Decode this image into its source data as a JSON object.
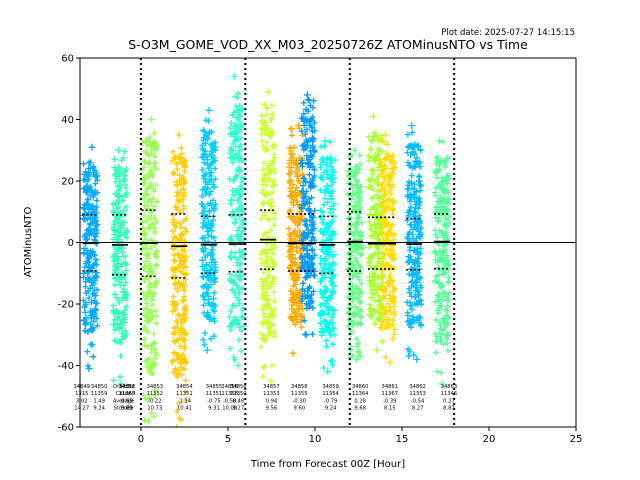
{
  "plot_date": "Plot date: 2025-07-27 14:15:15",
  "chart_data": {
    "type": "scatter",
    "title": "S-O3M_GOME_VOD_XX_M03_20250726Z ATOMinusNTO vs Time",
    "xlabel": "Time from Forecast 00Z [Hour]",
    "ylabel": "ATOMinusNTO",
    "xlim": [
      -3.5,
      25
    ],
    "ylim": [
      -60,
      60
    ],
    "xticks": [
      0,
      5,
      10,
      15,
      20,
      25
    ],
    "yticks": [
      -60,
      -40,
      -20,
      0,
      20,
      40,
      60
    ],
    "grid": false,
    "legend": "none",
    "marker": "+",
    "zero_line": 0,
    "vertical_dotted_lines": [
      0,
      6,
      12,
      18
    ],
    "orbits": [
      {
        "x": -2.9,
        "color": "#00aaff",
        "top": 31,
        "bottom": -41,
        "mean": -0.2,
        "std_hi": 9,
        "std_lo": -9.2
      },
      {
        "x": -1.2,
        "color": "#33ffbb",
        "top": 30,
        "bottom": -46,
        "mean": -0.8,
        "std_hi": 9,
        "std_lo": -10.5
      },
      {
        "x": 0.5,
        "color": "#99ff55",
        "top": 40,
        "bottom": -58,
        "mean": -0.2,
        "std_hi": 10.5,
        "std_lo": -11
      },
      {
        "x": 2.2,
        "color": "#ffcc00",
        "top": 35,
        "bottom": -60,
        "mean": -1.2,
        "std_hi": 9.3,
        "std_lo": -11.5
      },
      {
        "x": 3.9,
        "color": "#00ccff",
        "top": 43,
        "bottom": -35,
        "mean": -0.7,
        "std_hi": 8.5,
        "std_lo": -10
      },
      {
        "x": 5.5,
        "color": "#33ffcc",
        "top": 54,
        "bottom": -40,
        "mean": -0.5,
        "std_hi": 9,
        "std_lo": -9.5
      },
      {
        "x": 7.3,
        "color": "#ccff33",
        "top": 49,
        "bottom": -45,
        "mean": 0.9,
        "std_hi": 10.5,
        "std_lo": -8.7
      },
      {
        "x": 8.9,
        "color": "#ffaa00",
        "top": 38,
        "bottom": -36,
        "mean": -0.3,
        "std_hi": 9.3,
        "std_lo": -9.3
      },
      {
        "x": 9.6,
        "color": "#0099ff",
        "top": 48,
        "bottom": -30,
        "mean": -0.3,
        "std_hi": 9.3,
        "std_lo": -9.3
      },
      {
        "x": 10.7,
        "color": "#00ffee",
        "top": 33,
        "bottom": -42,
        "mean": -0.8,
        "std_hi": 8.5,
        "std_lo": -10
      },
      {
        "x": 12.3,
        "color": "#66ff88",
        "top": 30,
        "bottom": -38,
        "mean": 0.3,
        "std_hi": 10,
        "std_lo": -9.3
      },
      {
        "x": 13.5,
        "color": "#aaff33",
        "top": 41,
        "bottom": -35,
        "mean": -0.4,
        "std_hi": 8.2,
        "std_lo": -8.6
      },
      {
        "x": 14.2,
        "color": "#ffdd00",
        "top": 35,
        "bottom": -39,
        "mean": -0.4,
        "std_hi": 8.2,
        "std_lo": -8.6
      },
      {
        "x": 15.7,
        "color": "#00bbff",
        "top": 38,
        "bottom": -38,
        "mean": -0.5,
        "std_hi": 7.8,
        "std_lo": -8.9
      },
      {
        "x": 17.3,
        "color": "#55ff99",
        "top": 33,
        "bottom": -46,
        "mean": 0.3,
        "std_hi": 9.3,
        "std_lo": -8.5
      }
    ],
    "stats_columns": [
      {
        "x": -3.4,
        "lines": [
          "34849",
          "1315",
          "3.02",
          "14.27"
        ]
      },
      {
        "x": -2.4,
        "lines": [
          "34850",
          "11359",
          "1.49",
          "9.24"
        ]
      },
      {
        "x": -1.0,
        "lines": [
          "Orbit Nr",
          "Count",
          "Average",
          "Std.dev"
        ]
      },
      {
        "x": -0.8,
        "lines": [
          "34851",
          "11360",
          "0.69",
          "9.69"
        ]
      },
      {
        "x": -0.8,
        "lines": [
          "34852",
          "11363",
          "0.69",
          "9.72"
        ]
      },
      {
        "x": 0.8,
        "lines": [
          "34853",
          "11352",
          "-0.22",
          "10.73"
        ]
      },
      {
        "x": 2.5,
        "lines": [
          "34854",
          "11351",
          "-1.14",
          "10.41"
        ]
      },
      {
        "x": 4.2,
        "lines": [
          "34855",
          "11351",
          "-0.75",
          "9.31"
        ]
      },
      {
        "x": 5.1,
        "lines": [
          "34856",
          "11358",
          "-0.58",
          "10.00"
        ]
      },
      {
        "x": 5.6,
        "lines": [
          "34856",
          "11350",
          "0.48",
          "9.27"
        ]
      },
      {
        "x": 7.5,
        "lines": [
          "34857",
          "11353",
          "0.94",
          "9.56"
        ]
      },
      {
        "x": 9.1,
        "lines": [
          "34858",
          "11355",
          "-0.30",
          "9.60"
        ]
      },
      {
        "x": 10.9,
        "lines": [
          "34859",
          "11354",
          "-0.79",
          "9.24"
        ]
      },
      {
        "x": 12.6,
        "lines": [
          "34860",
          "11364",
          "0.28",
          "9.68"
        ]
      },
      {
        "x": 14.3,
        "lines": [
          "34861",
          "11367",
          "-0.39",
          "8.15"
        ]
      },
      {
        "x": 15.9,
        "lines": [
          "34862",
          "11353",
          "-0.54",
          "8.27"
        ]
      },
      {
        "x": 17.7,
        "lines": [
          "34863",
          "11346",
          "0.27",
          "8.87"
        ]
      }
    ]
  }
}
